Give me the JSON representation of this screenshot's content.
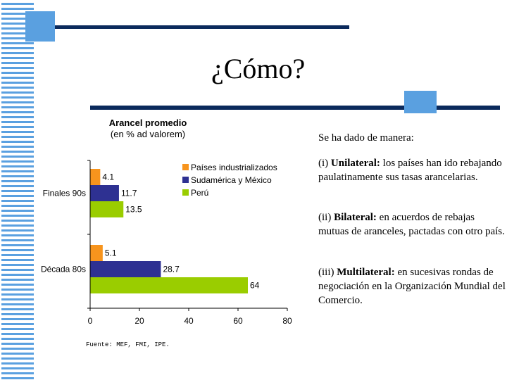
{
  "slide": {
    "title": "¿Cómo?",
    "accent_dark": "#0b2a5c",
    "accent_light": "#5aa0e0"
  },
  "chart_data": {
    "type": "bar",
    "orientation": "horizontal",
    "title": "Arancel promedio",
    "subtitle": "(en % ad valorem)",
    "categories": [
      "Finales 90s",
      "Década 80s"
    ],
    "series": [
      {
        "name": "Países industrializados",
        "color": "#f7941d",
        "values": [
          4.1,
          5.1
        ]
      },
      {
        "name": "Sudamérica y México",
        "color": "#2e3192",
        "values": [
          11.7,
          28.7
        ]
      },
      {
        "name": "Perú",
        "color": "#9acd00",
        "values": [
          13.5,
          64
        ]
      }
    ],
    "xlim": [
      0,
      80
    ],
    "xticks": [
      0,
      20,
      40,
      60,
      80
    ],
    "grid": false,
    "legend": "top-right",
    "source": "Fuente: MEF, FMI, IPE."
  },
  "side": {
    "heading": "Se ha dado de manera:",
    "items": [
      {
        "num": "(i)",
        "bold": "Unilateral:",
        "text": "los países han ido rebajando paulatinamente sus tasas arancelarias."
      },
      {
        "num": "(ii)",
        "bold": "Bilateral:",
        "text": "en acuerdos de rebajas mutuas de aranceles, pactadas con otro país."
      },
      {
        "num": "(iii)",
        "bold": "Multilateral:",
        "text": "en sucesivas rondas de negociación en la Organización Mundial del Comercio."
      }
    ]
  }
}
